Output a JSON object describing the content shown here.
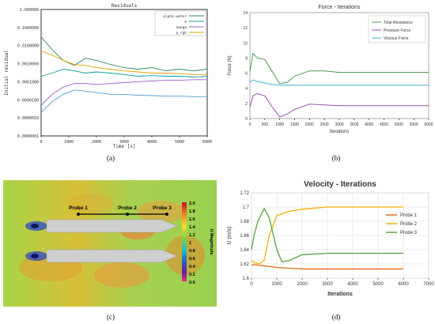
{
  "captions": [
    "(a)",
    "(b)",
    "(c)",
    "(d)"
  ],
  "chart_data": [
    {
      "type": "line",
      "title": "Residuals",
      "xlabel": "Time [s]",
      "ylabel": "Initial residual",
      "yscale": "log",
      "xlim": [
        0,
        6000
      ],
      "ylim": [
        1e-07,
        1
      ],
      "x_ticks": [
        "0",
        "1000",
        "2000",
        "3000",
        "4000",
        "5000",
        "6000"
      ],
      "y_ticks": [
        "1.000000",
        "0.1000000",
        "0.0100000",
        "0.0010000",
        "0.0001000",
        "0.0000100",
        "0.0000010",
        "0.0000001"
      ],
      "legend_position": "top-right",
      "series": [
        {
          "name": "alpha.water",
          "color": "#2e8b57",
          "x": [
            0,
            400,
            800,
            1200,
            1600,
            2000,
            2500,
            3000,
            3500,
            4000,
            4500,
            5000,
            5500,
            6000
          ],
          "y": [
            0.03,
            0.006,
            0.0015,
            0.0008,
            0.002,
            0.0015,
            0.0009,
            0.0006,
            0.0005,
            0.0006,
            0.0004,
            0.0005,
            0.0004,
            0.0005
          ]
        },
        {
          "name": "k",
          "color": "#00a0a0",
          "x": [
            0,
            400,
            800,
            1200,
            1600,
            2000,
            2500,
            3000,
            3500,
            4000,
            4500,
            5000,
            5500,
            6000
          ],
          "y": [
            0.0002,
            0.0003,
            0.0005,
            0.0004,
            0.0003,
            0.00035,
            0.0003,
            0.00025,
            0.0002,
            0.00022,
            0.0002,
            0.0002,
            0.00018,
            0.0002
          ]
        },
        {
          "name": "omega",
          "color": "#a060c8",
          "x": [
            0,
            400,
            800,
            1200,
            1600,
            2000,
            2500,
            3000,
            3500,
            4000,
            4500,
            5000,
            5500,
            6000
          ],
          "y": [
            5e-06,
            2e-05,
            5e-05,
            8e-05,
            8e-05,
            7e-05,
            8e-05,
            9e-05,
            0.0001,
            0.00011,
            0.00012,
            0.00012,
            0.00013,
            0.00013
          ]
        },
        {
          "name": "p_rgh",
          "color": "#e0a000",
          "x": [
            0,
            400,
            800,
            1200,
            1600,
            2000,
            2500,
            3000,
            3500,
            4000,
            4500,
            5000,
            5500,
            6000
          ],
          "y": [
            0.005,
            0.003,
            0.0015,
            0.0009,
            0.0008,
            0.0006,
            0.0005,
            0.0004,
            0.00035,
            0.0003,
            0.0003,
            0.00028,
            0.00025,
            0.00025
          ]
        },
        {
          "name": "",
          "color": "#4fa0d8",
          "x": [
            0,
            400,
            800,
            1200,
            1600,
            2000,
            2500,
            3000,
            3500,
            4000,
            4500,
            5000,
            5500,
            6000
          ],
          "y": [
            2e-06,
            8e-06,
            2e-05,
            3.5e-05,
            3e-05,
            2.5e-05,
            2e-05,
            2e-05,
            1.8e-05,
            1.7e-05,
            1.6e-05,
            1.6e-05,
            1.5e-05,
            1.5e-05
          ]
        }
      ]
    },
    {
      "type": "line",
      "title": "Force - Iterations",
      "xlabel": "Iterations",
      "ylabel": "Force (N)",
      "xlim": [
        0,
        6000
      ],
      "ylim": [
        0,
        14
      ],
      "x_ticks": [
        "0",
        "500",
        "1000",
        "1500",
        "2000",
        "2500",
        "3000",
        "3500",
        "4000",
        "4500",
        "5000",
        "5500",
        "6000"
      ],
      "y_ticks": [
        "0",
        "2",
        "4",
        "6",
        "8",
        "10",
        "12",
        "14"
      ],
      "legend_position": "top-right",
      "series": [
        {
          "name": "Total Resistance",
          "color": "#4a9a50",
          "x": [
            0,
            100,
            250,
            500,
            750,
            1000,
            1250,
            1500,
            2000,
            2500,
            3000,
            4000,
            5000,
            6000
          ],
          "y": [
            6.2,
            8.6,
            8.0,
            7.8,
            6.2,
            4.6,
            4.8,
            5.6,
            6.3,
            6.3,
            6.1,
            6.1,
            6.1,
            6.1
          ]
        },
        {
          "name": "Pressure Force",
          "color": "#9a50b8",
          "x": [
            0,
            100,
            250,
            500,
            750,
            1000,
            1250,
            1500,
            2000,
            2500,
            3000,
            4000,
            5000,
            6000
          ],
          "y": [
            1.5,
            3.0,
            3.3,
            3.0,
            1.5,
            0.2,
            0.6,
            1.2,
            1.9,
            1.8,
            1.7,
            1.7,
            1.7,
            1.7
          ]
        },
        {
          "name": "Viscous Force",
          "color": "#3cb4c8",
          "x": [
            0,
            100,
            250,
            500,
            750,
            1000,
            1500,
            2000,
            3000,
            4000,
            5000,
            6000
          ],
          "y": [
            4.8,
            5.1,
            4.9,
            4.7,
            4.5,
            4.4,
            4.4,
            4.4,
            4.4,
            4.4,
            4.4,
            4.4
          ]
        }
      ]
    },
    {
      "type": "heatmap",
      "colorbar_label": "U Magnitude",
      "colorbar_ticks": [
        "2.0",
        "1.8",
        "1.6",
        "1.4",
        "1.2",
        "1",
        "0.8",
        "0.6",
        "0.4",
        "0.2",
        "0.0"
      ],
      "probes": [
        "Probe 1",
        "Probe 2",
        "Probe 3"
      ]
    },
    {
      "type": "line",
      "title": "Velocity - Iterations",
      "xlabel": "Iterations",
      "ylabel": "U (m/s)",
      "xlim": [
        0,
        7000
      ],
      "ylim": [
        1.6,
        1.72
      ],
      "x_ticks": [
        "0",
        "1000",
        "2000",
        "3000",
        "4000",
        "5000",
        "6000",
        "7000"
      ],
      "y_ticks": [
        "1.6",
        "1.62",
        "1.64",
        "1.66",
        "1.68",
        "1.7",
        "1.72"
      ],
      "legend_position": "right",
      "series": [
        {
          "name": "Probe 1",
          "color": "#e07020",
          "x": [
            0,
            100,
            300,
            600,
            1000,
            1500,
            2000,
            3000,
            4000,
            5000,
            6000
          ],
          "y": [
            1.618,
            1.619,
            1.618,
            1.617,
            1.615,
            1.614,
            1.613,
            1.613,
            1.613,
            1.613,
            1.613
          ]
        },
        {
          "name": "Probe 2",
          "color": "#f0b000",
          "x": [
            0,
            100,
            300,
            500,
            700,
            1000,
            1500,
            2000,
            3000,
            4000,
            5000,
            6000
          ],
          "y": [
            1.625,
            1.622,
            1.62,
            1.625,
            1.66,
            1.688,
            1.694,
            1.697,
            1.7,
            1.7,
            1.7,
            1.7
          ]
        },
        {
          "name": "Probe 3",
          "color": "#5aa040",
          "x": [
            0,
            100,
            250,
            500,
            700,
            1000,
            1200,
            1500,
            2000,
            3000,
            4000,
            5000,
            6000
          ],
          "y": [
            1.64,
            1.66,
            1.68,
            1.698,
            1.685,
            1.64,
            1.623,
            1.625,
            1.633,
            1.635,
            1.635,
            1.635,
            1.635
          ]
        }
      ]
    }
  ]
}
